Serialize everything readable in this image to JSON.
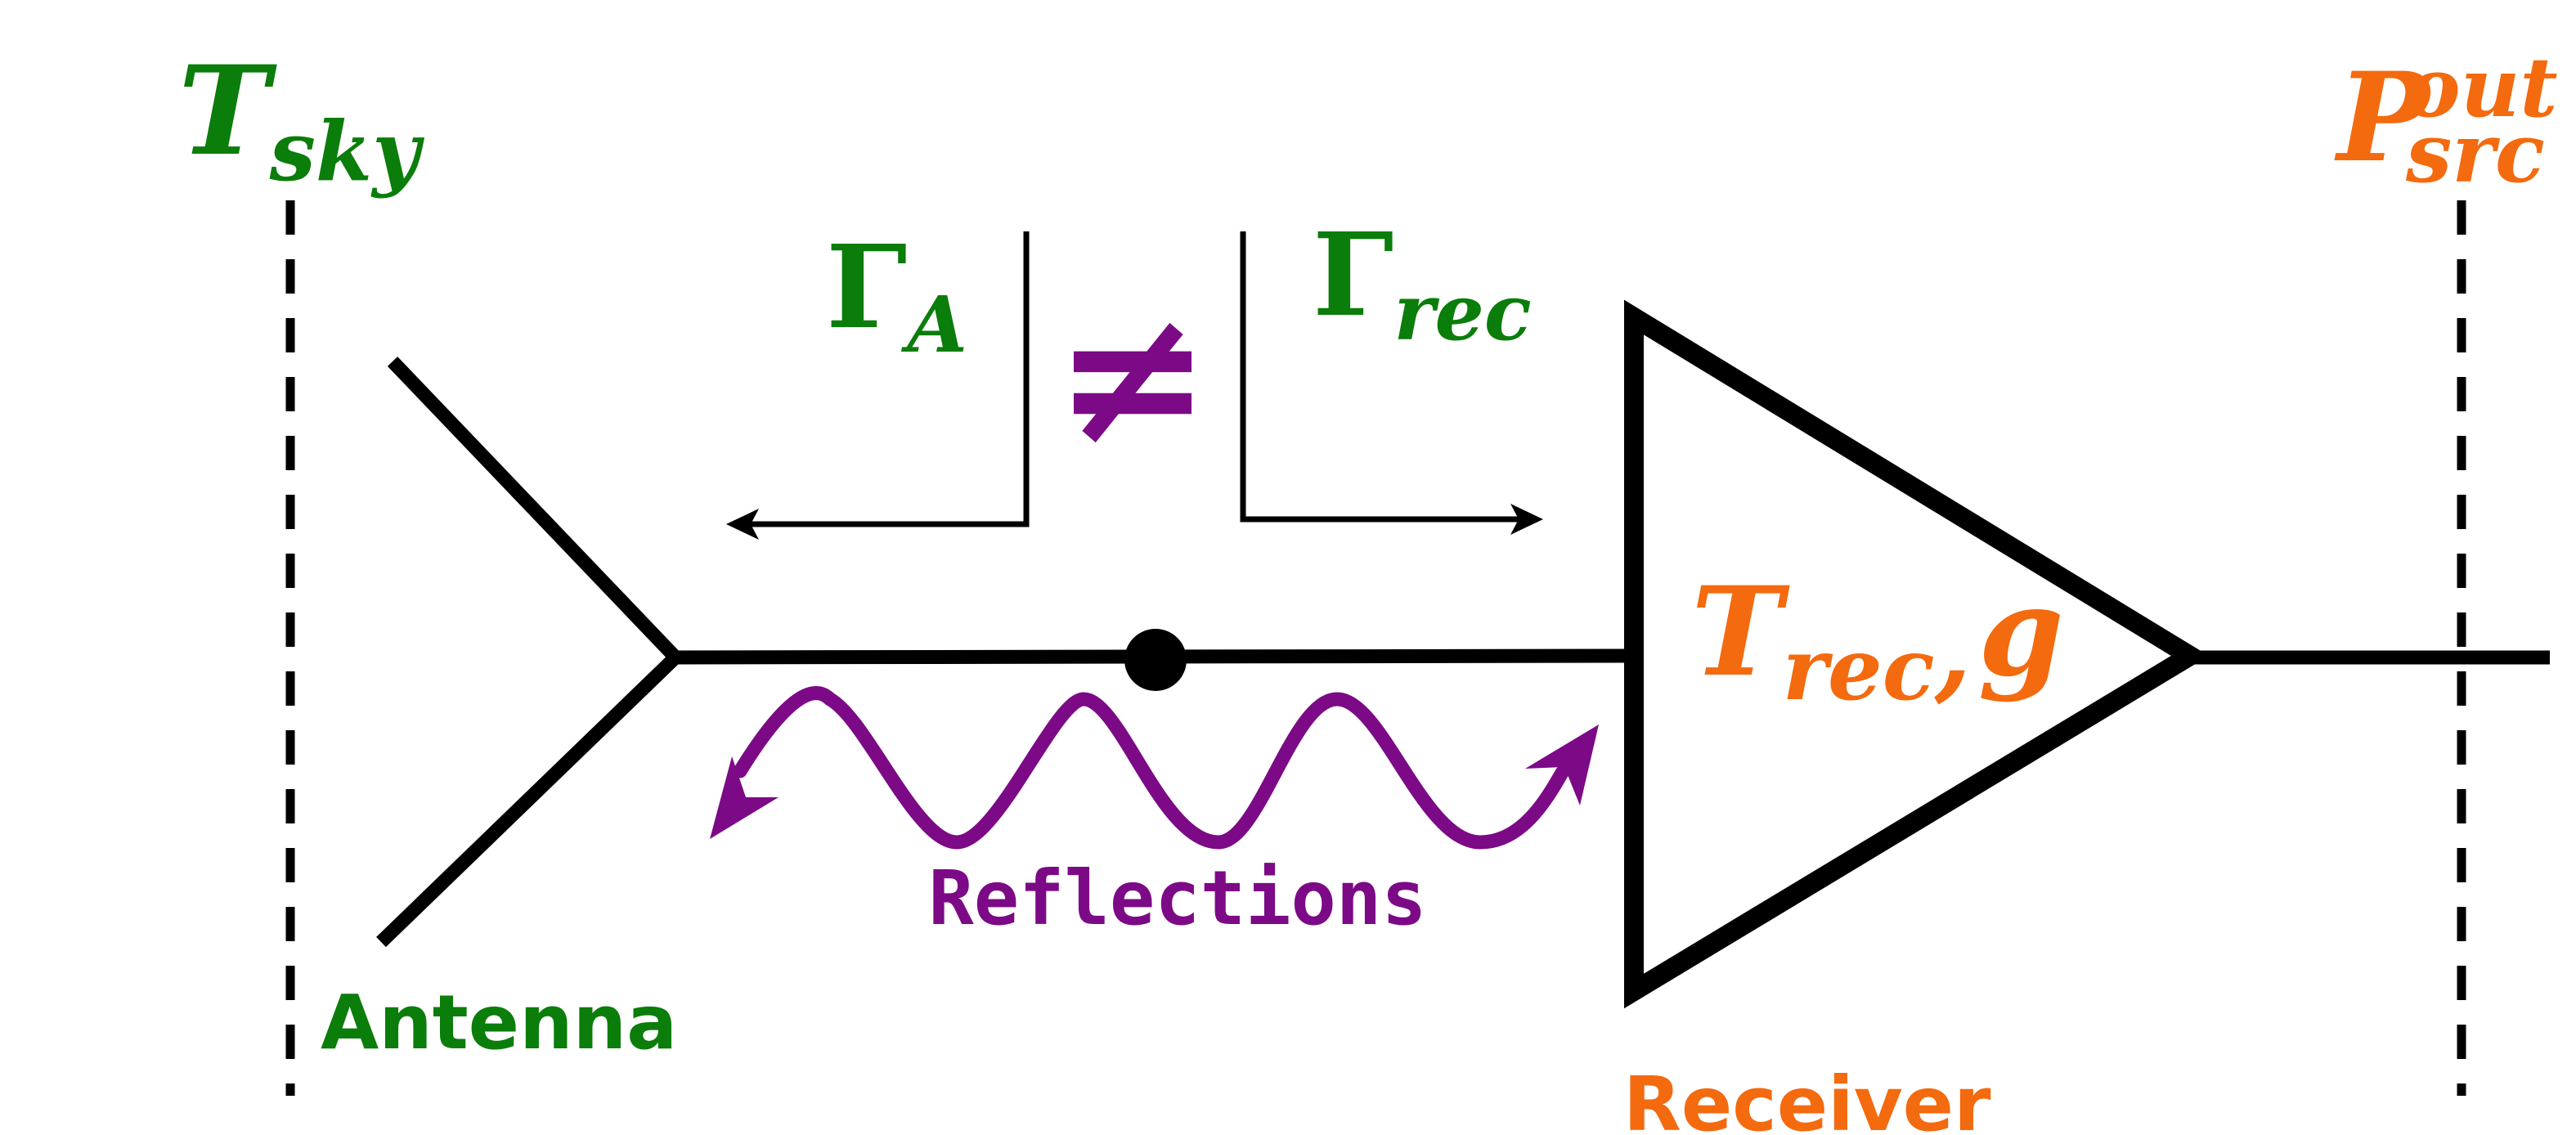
{
  "colors": {
    "green": "#0a7d0a",
    "orange": "#f46a0e",
    "purple": "#7c0a86",
    "black": "#000000"
  },
  "labels": {
    "t_sky_main": "T",
    "t_sky_sub": "sky",
    "p_main": "P",
    "p_sup": "out",
    "p_sub": "src",
    "gamma_a_main": "Γ",
    "gamma_a_sub": "A",
    "gamma_rec_main": "Γ",
    "gamma_rec_sub": "rec",
    "not_equal": "≠",
    "t_rec_main": "T",
    "t_rec_sub": "rec",
    "t_rec_comma": ",",
    "gain": "g",
    "reflections": "Reflections",
    "antenna": "Antenna",
    "receiver": "Receiver"
  },
  "icons": {
    "antenna": "antenna-icon",
    "amplifier": "amplifier-triangle-icon",
    "reflection_wave": "wave-arrow-icon",
    "junction": "junction-dot-icon"
  }
}
